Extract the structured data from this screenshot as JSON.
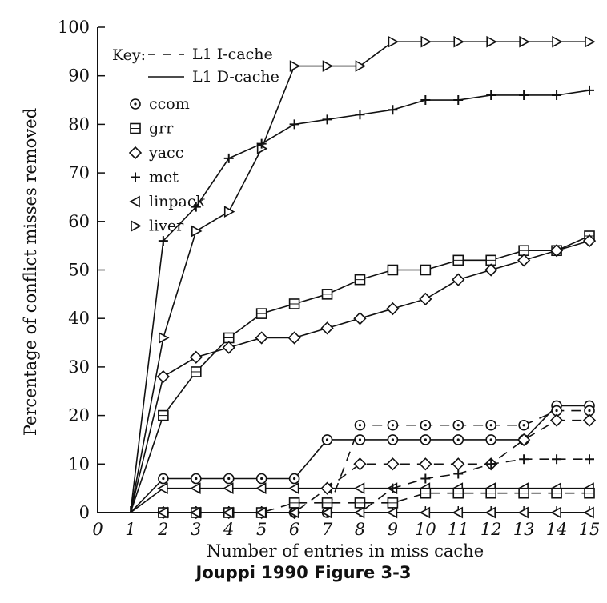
{
  "chart_data": {
    "type": "line",
    "xlabel": "Number of entries in miss cache",
    "ylabel": "Percentage of conflict misses removed",
    "xlim": [
      0,
      15
    ],
    "ylim": [
      0,
      100
    ],
    "x_ticks": [
      0,
      1,
      2,
      3,
      4,
      5,
      6,
      7,
      8,
      9,
      10,
      11,
      12,
      13,
      14,
      15
    ],
    "y_ticks": [
      0,
      10,
      20,
      30,
      40,
      50,
      60,
      70,
      80,
      90,
      100
    ],
    "grid": false,
    "legend_position": "top-left",
    "legend": {
      "key_label": "Key:",
      "line_styles": [
        {
          "label": "L1 I-cache",
          "style": "dashed"
        },
        {
          "label": "L1 D-cache",
          "style": "solid"
        }
      ],
      "markers": [
        {
          "label": "ccom",
          "marker": "circle"
        },
        {
          "label": "grr",
          "marker": "square"
        },
        {
          "label": "yacc",
          "marker": "diamond"
        },
        {
          "label": "met",
          "marker": "plus"
        },
        {
          "label": "linpack",
          "marker": "triangle-left"
        },
        {
          "label": "liver",
          "marker": "triangle-right"
        }
      ]
    },
    "series": [
      {
        "name": "liver",
        "marker": "triangle-right",
        "dash": false,
        "x": [
          1,
          2,
          3,
          4,
          5,
          6,
          7,
          8,
          9,
          10,
          11,
          12,
          13,
          14,
          15
        ],
        "y": [
          0,
          36,
          58,
          62,
          75,
          92,
          92,
          92,
          97,
          97,
          97,
          97,
          97,
          97,
          97
        ]
      },
      {
        "name": "met",
        "marker": "plus",
        "dash": false,
        "x": [
          1,
          2,
          3,
          4,
          5,
          6,
          7,
          8,
          9,
          10,
          11,
          12,
          13,
          14,
          15
        ],
        "y": [
          0,
          56,
          63,
          73,
          76,
          80,
          81,
          82,
          83,
          85,
          85,
          86,
          86,
          86,
          87
        ]
      },
      {
        "name": "grr",
        "marker": "square",
        "dash": false,
        "x": [
          1,
          2,
          3,
          4,
          5,
          6,
          7,
          8,
          9,
          10,
          11,
          12,
          13,
          14,
          15
        ],
        "y": [
          0,
          20,
          29,
          36,
          41,
          43,
          45,
          48,
          50,
          50,
          52,
          52,
          54,
          54,
          57
        ]
      },
      {
        "name": "yacc",
        "marker": "diamond",
        "dash": false,
        "x": [
          1,
          2,
          3,
          4,
          5,
          6,
          7,
          8,
          9,
          10,
          11,
          12,
          13,
          14,
          15
        ],
        "y": [
          0,
          28,
          32,
          34,
          36,
          36,
          38,
          40,
          42,
          44,
          48,
          50,
          52,
          54,
          56
        ]
      },
      {
        "name": "ccom",
        "marker": "circle",
        "dash": false,
        "x": [
          1,
          2,
          3,
          4,
          5,
          6,
          7,
          8,
          9,
          10,
          11,
          12,
          13,
          14,
          15
        ],
        "y": [
          0,
          7,
          7,
          7,
          7,
          7,
          15,
          15,
          15,
          15,
          15,
          15,
          15,
          22,
          22
        ]
      },
      {
        "name": "linpack",
        "marker": "triangle-left",
        "dash": false,
        "x": [
          1,
          2,
          3,
          4,
          5,
          6,
          7,
          8,
          9,
          10,
          11,
          12,
          13,
          14,
          15
        ],
        "y": [
          0,
          5,
          5,
          5,
          5,
          5,
          5,
          5,
          5,
          5,
          5,
          5,
          5,
          5,
          5
        ]
      },
      {
        "name": "ccom",
        "marker": "circle",
        "dash": true,
        "x": [
          1,
          2,
          3,
          4,
          5,
          6,
          7,
          8,
          9,
          10,
          11,
          12,
          13,
          14,
          15
        ],
        "y": [
          0,
          0,
          0,
          0,
          0,
          0,
          0,
          18,
          18,
          18,
          18,
          18,
          18,
          21,
          21
        ]
      },
      {
        "name": "yacc",
        "marker": "diamond",
        "dash": true,
        "x": [
          1,
          2,
          3,
          4,
          5,
          6,
          7,
          8,
          9,
          10,
          11,
          12,
          13,
          14,
          15
        ],
        "y": [
          0,
          0,
          0,
          0,
          0,
          0,
          5,
          10,
          10,
          10,
          10,
          10,
          15,
          19,
          19
        ]
      },
      {
        "name": "met",
        "marker": "plus",
        "dash": true,
        "x": [
          1,
          2,
          3,
          4,
          5,
          6,
          7,
          8,
          9,
          10,
          11,
          12,
          13,
          14,
          15
        ],
        "y": [
          0,
          0,
          0,
          0,
          0,
          0,
          0,
          0,
          5,
          7,
          8,
          10,
          11,
          11,
          11
        ]
      },
      {
        "name": "grr",
        "marker": "square",
        "dash": true,
        "x": [
          1,
          2,
          3,
          4,
          5,
          6,
          7,
          8,
          9,
          10,
          11,
          12,
          13,
          14,
          15
        ],
        "y": [
          0,
          0,
          0,
          0,
          0,
          2,
          2,
          2,
          2,
          4,
          4,
          4,
          4,
          4,
          4
        ]
      },
      {
        "name": "linpack",
        "marker": "triangle-left",
        "dash": true,
        "x": [
          1,
          2,
          3,
          4,
          5,
          6,
          7,
          8,
          9,
          10,
          11,
          12,
          13,
          14,
          15
        ],
        "y": [
          0,
          0,
          0,
          0,
          0,
          0,
          0,
          0,
          0,
          0,
          0,
          0,
          0,
          0,
          0
        ]
      }
    ]
  },
  "caption": "Jouppi 1990 Figure 3-3"
}
